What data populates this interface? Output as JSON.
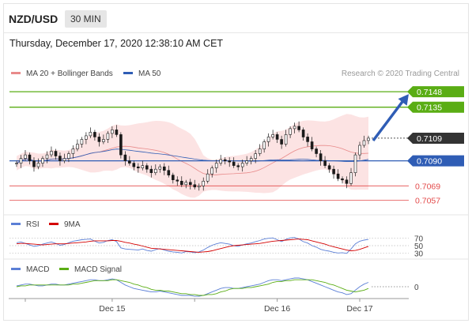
{
  "header": {
    "symbol": "NZD/USD",
    "timeframe": "30 MIN"
  },
  "datetime": "Thursday, December 17, 2020 12:38:10 AM CET",
  "legend": {
    "ma20": "MA 20 + Bollinger Bands",
    "ma50": "MA 50",
    "credit": "Research © 2020 Trading Central"
  },
  "colors": {
    "green": "#5aad14",
    "blue": "#2f5db5",
    "red": "#e34b4b",
    "pink_band": "#fbd9d9",
    "ma20": "#e88a8a",
    "dark_label": "#333333",
    "candle_up": "#1a1a1a",
    "candle_down": "#1a1a1a"
  },
  "chart_data": {
    "type": "candlestick",
    "price_range": [
      7048,
      7158
    ],
    "levels": [
      {
        "value": "0.7148",
        "kind": "resistance",
        "color": "#5aad14"
      },
      {
        "value": "0.7135",
        "kind": "resistance",
        "color": "#5aad14"
      },
      {
        "value": "0.7109",
        "kind": "last",
        "color": "#333333"
      },
      {
        "value": "0.7090",
        "kind": "pivot",
        "color": "#2f5db5"
      },
      {
        "value": "0.7069",
        "kind": "support",
        "color": "#e34b4b"
      },
      {
        "value": "0.7057",
        "kind": "support",
        "color": "#e34b4b"
      }
    ],
    "close_series": [
      7088,
      7092,
      7095,
      7090,
      7085,
      7088,
      7092,
      7095,
      7098,
      7094,
      7090,
      7092,
      7096,
      7100,
      7104,
      7108,
      7111,
      7114,
      7110,
      7106,
      7108,
      7113,
      7116,
      7112,
      7095,
      7090,
      7088,
      7085,
      7084,
      7086,
      7083,
      7080,
      7083,
      7085,
      7082,
      7078,
      7074,
      7073,
      7070,
      7072,
      7070,
      7068,
      7069,
      7073,
      7079,
      7084,
      7088,
      7091,
      7090,
      7089,
      7086,
      7085,
      7088,
      7090,
      7092,
      7096,
      7100,
      7106,
      7110,
      7112,
      7108,
      7104,
      7112,
      7117,
      7119,
      7116,
      7110,
      7106,
      7100,
      7096,
      7090,
      7086,
      7083,
      7079,
      7075,
      7074,
      7071,
      7080,
      7095,
      7103,
      7107,
      7109
    ],
    "arrow": {
      "from_price": 7107,
      "to_price": 7146
    },
    "x_labels": [
      "Dec 15",
      "Dec 16",
      "Dec 17"
    ],
    "indicators": {
      "rsi": {
        "legend": [
          "RSI",
          "9MA"
        ],
        "levels": [
          "70",
          "50",
          "30"
        ],
        "rsi_values": [
          58,
          60,
          56,
          52,
          48,
          50,
          54,
          57,
          60,
          56,
          51,
          53,
          58,
          62,
          64,
          66,
          67,
          68,
          62,
          57,
          59,
          64,
          66,
          61,
          44,
          41,
          40,
          39,
          38,
          41,
          37,
          35,
          39,
          42,
          38,
          35,
          33,
          32,
          30,
          34,
          33,
          31,
          33,
          38,
          45,
          51,
          55,
          58,
          56,
          54,
          50,
          48,
          52,
          55,
          57,
          61,
          64,
          68,
          70,
          71,
          66,
          61,
          67,
          71,
          72,
          68,
          61,
          57,
          50,
          46,
          40,
          37,
          35,
          32,
          30,
          31,
          29,
          41,
          55,
          62,
          65,
          67
        ],
        "ma_values": [
          55,
          56,
          56,
          55,
          54,
          53,
          52,
          53,
          54,
          55,
          55,
          55,
          56,
          57,
          58,
          59,
          60,
          62,
          63,
          63,
          63,
          63,
          64,
          64,
          62,
          59,
          57,
          54,
          52,
          49,
          46,
          43,
          42,
          41,
          40,
          39,
          38,
          37,
          36,
          35,
          34,
          33,
          32,
          33,
          34,
          36,
          39,
          42,
          45,
          48,
          50,
          51,
          52,
          53,
          54,
          55,
          56,
          58,
          60,
          62,
          63,
          64,
          65,
          66,
          67,
          68,
          67,
          66,
          63,
          60,
          57,
          54,
          50,
          47,
          44,
          41,
          38,
          36,
          37,
          40,
          44,
          48
        ]
      },
      "macd": {
        "legend": [
          "MACD",
          "MACD Signal"
        ],
        "zero_label": "0",
        "macd_values": [
          1,
          2,
          3,
          3,
          2,
          1,
          1,
          2,
          3,
          3,
          2,
          2,
          3,
          4,
          5,
          6,
          7,
          8,
          8,
          7,
          7,
          8,
          9,
          8,
          5,
          2,
          0,
          -2,
          -3,
          -4,
          -5,
          -6,
          -6,
          -5,
          -6,
          -7,
          -8,
          -9,
          -10,
          -10,
          -10,
          -11,
          -11,
          -10,
          -8,
          -6,
          -4,
          -2,
          -1,
          -1,
          -2,
          -2,
          -1,
          0,
          1,
          2,
          3,
          5,
          7,
          8,
          8,
          7,
          8,
          9,
          10,
          10,
          9,
          8,
          6,
          4,
          2,
          0,
          -2,
          -4,
          -6,
          -7,
          -9,
          -8,
          -4,
          0,
          3,
          5
        ],
        "signal_values": [
          0,
          1,
          1,
          2,
          2,
          2,
          2,
          2,
          2,
          2,
          2,
          2,
          2,
          3,
          3,
          4,
          5,
          6,
          7,
          7,
          7,
          7,
          8,
          8,
          7,
          6,
          5,
          3,
          2,
          0,
          -1,
          -3,
          -4,
          -4,
          -5,
          -5,
          -6,
          -7,
          -8,
          -8,
          -9,
          -9,
          -10,
          -10,
          -9,
          -9,
          -8,
          -6,
          -5,
          -3,
          -2,
          -2,
          -2,
          -1,
          -1,
          0,
          1,
          2,
          3,
          5,
          6,
          6,
          7,
          7,
          8,
          8,
          8,
          8,
          8,
          7,
          6,
          5,
          3,
          2,
          0,
          -2,
          -4,
          -5,
          -6,
          -5,
          -4,
          -2
        ]
      }
    }
  }
}
